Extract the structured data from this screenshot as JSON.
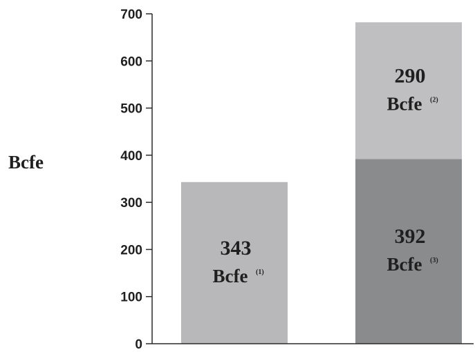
{
  "chart_data": {
    "type": "bar",
    "stacked": true,
    "title": "",
    "xlabel": "",
    "ylabel": "Bcfe",
    "ylim": [
      0,
      700
    ],
    "y_ticks": [
      0,
      100,
      200,
      300,
      400,
      500,
      600,
      700
    ],
    "grid": false,
    "legend": "none",
    "bars": [
      {
        "segments": [
          {
            "value": 343,
            "value_label": "343",
            "unit": "Bcfe",
            "note": "(1)",
            "color": "#b8b8ba"
          }
        ]
      },
      {
        "segments": [
          {
            "value": 392,
            "value_label": "392",
            "unit": "Bcfe",
            "note": "(3)",
            "color": "#8a8b8d"
          },
          {
            "value": 290,
            "value_label": "290",
            "unit": "Bcfe",
            "note": "(2)",
            "color": "#bfbfc1"
          }
        ]
      }
    ]
  },
  "colors": {
    "axis": "#2a2a2a",
    "text": "#1f1f1f"
  }
}
